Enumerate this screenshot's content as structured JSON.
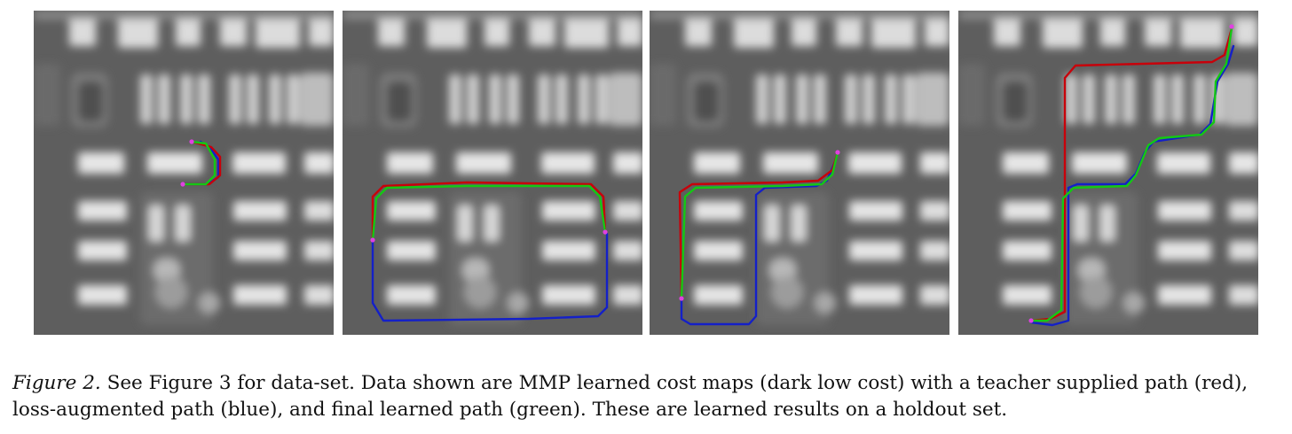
{
  "figure": {
    "panel_count": 4,
    "path_colors": {
      "teacher": "#c8000a",
      "loss_augmented": "#1420c8",
      "learned": "#14c814",
      "endpoint": "#e040e0"
    }
  },
  "caption": {
    "lead": "Figure 2.",
    "text": " See Figure 3 for data-set. Data shown are MMP learned cost maps (dark low cost) with a teacher supplied path (red), loss-augmented path (blue), and final learned path (green). These are learned results on a holdout set."
  }
}
